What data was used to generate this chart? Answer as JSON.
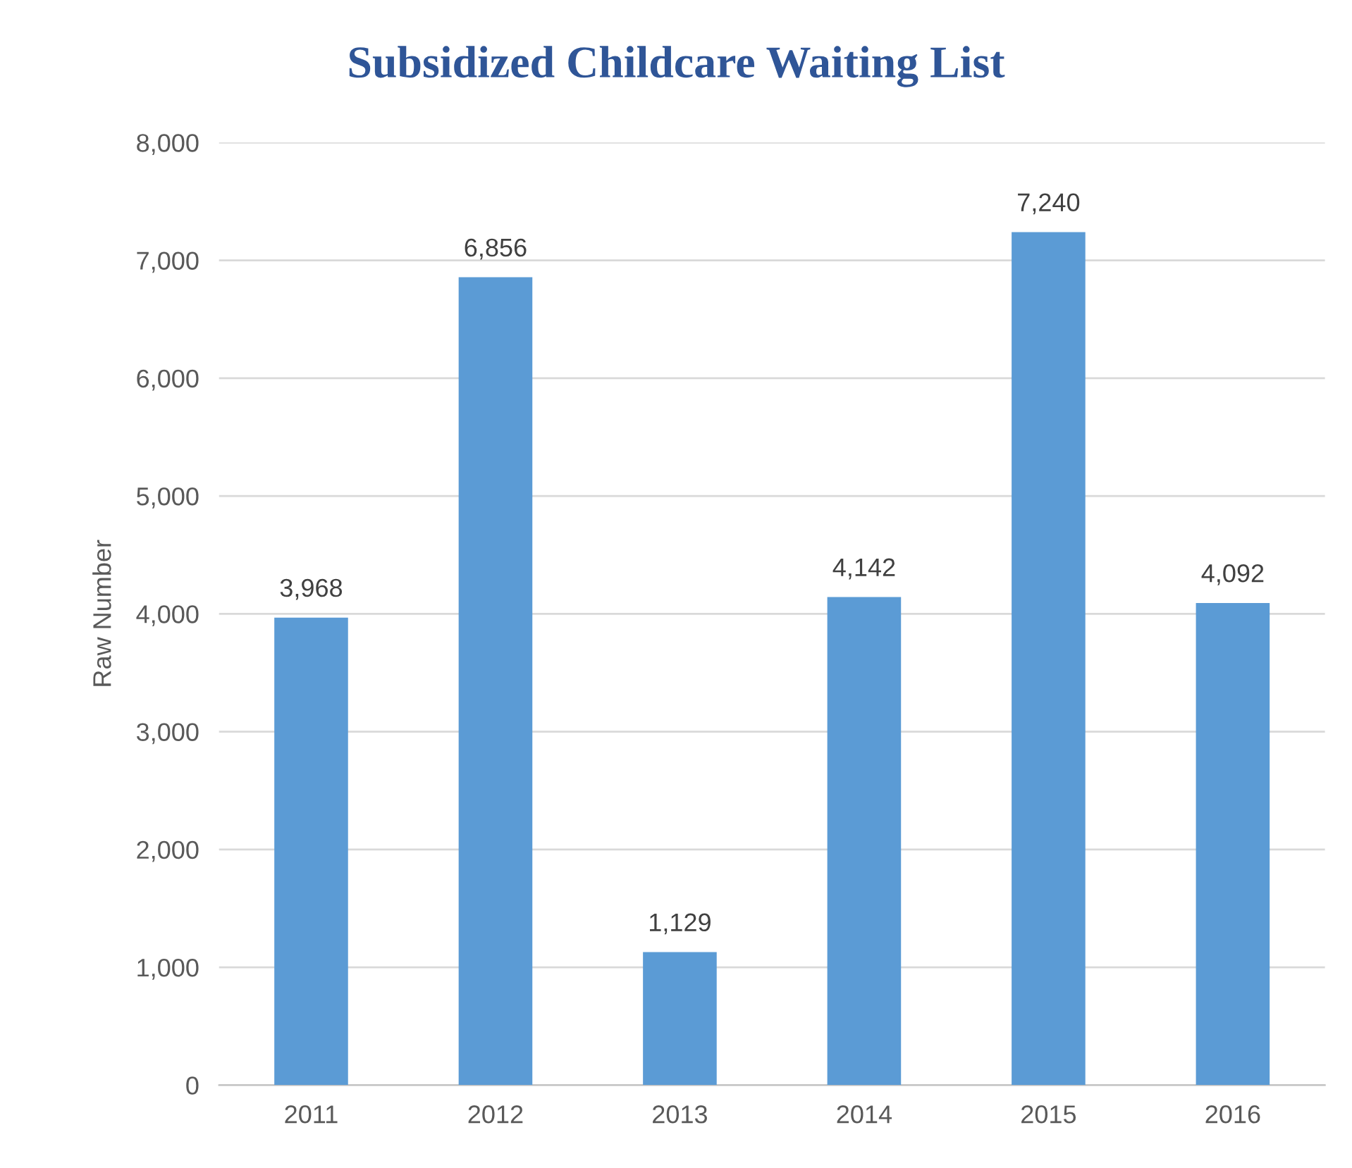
{
  "chart_data": {
    "type": "bar",
    "title": "Subsidized Childcare Waiting List",
    "ylabel": "Raw Number",
    "categories": [
      "2011",
      "2012",
      "2013",
      "2014",
      "2015",
      "2016"
    ],
    "values": [
      3968,
      6856,
      1129,
      4142,
      7240,
      4092
    ],
    "color": "#5b9bd5",
    "ylim": [
      0,
      8000
    ],
    "yticks": [
      {
        "value": 0,
        "label": "0"
      },
      {
        "value": 1000,
        "label": "1,000"
      },
      {
        "value": 2000,
        "label": "2,000"
      },
      {
        "value": 3000,
        "label": "3,000"
      },
      {
        "value": 4000,
        "label": "4,000"
      },
      {
        "value": 5000,
        "label": "5,000"
      },
      {
        "value": 6000,
        "label": "6,000"
      },
      {
        "value": 7000,
        "label": "7,000"
      },
      {
        "value": 8000,
        "label": "8,000"
      }
    ],
    "value_labels": [
      "3,968",
      "6,856",
      "1,129",
      "4,142",
      "7,240",
      "4,092"
    ],
    "grid": "y",
    "legend": false
  }
}
